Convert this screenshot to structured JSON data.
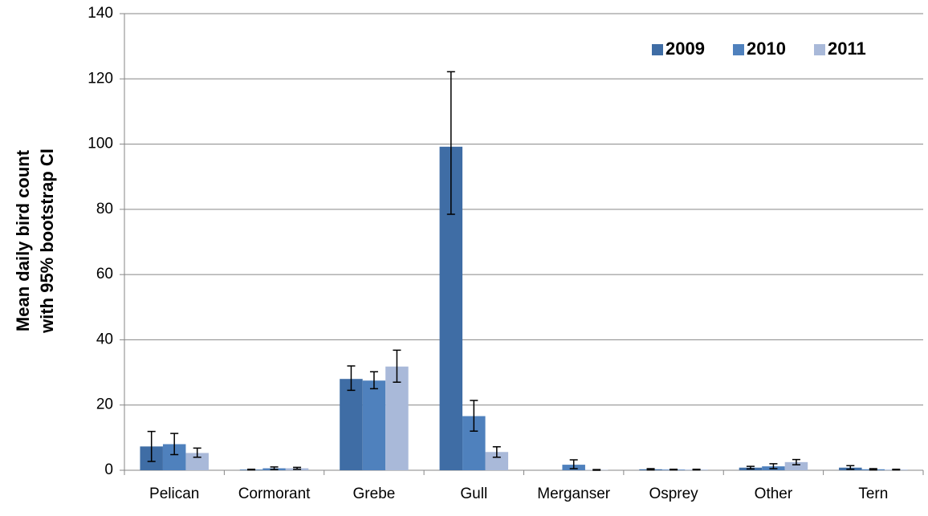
{
  "chart_data": {
    "type": "bar",
    "ylabel": [
      "Mean daily bird count",
      "with 95% bootstrap CI"
    ],
    "categories": [
      "Pelican",
      "Cormorant",
      "Grebe",
      "Gull",
      "Merganser",
      "Osprey",
      "Other",
      "Tern"
    ],
    "series": [
      {
        "name": "2009",
        "color": "#3f6da5",
        "values": [
          7.3,
          0.2,
          28.0,
          99.2,
          null,
          0.3,
          0.8,
          0.8
        ],
        "ci_low": [
          2.7,
          0.1,
          24.5,
          78.5,
          null,
          0.1,
          0.4,
          0.3
        ],
        "ci_high": [
          11.9,
          0.3,
          32.0,
          122.2,
          null,
          0.5,
          1.2,
          1.4
        ]
      },
      {
        "name": "2010",
        "color": "#4f81bd",
        "values": [
          8.0,
          0.6,
          27.5,
          16.6,
          1.7,
          0.2,
          1.2,
          0.3
        ],
        "ci_low": [
          4.8,
          0.2,
          25.0,
          12.0,
          0.5,
          0.1,
          0.5,
          0.1
        ],
        "ci_high": [
          11.3,
          1.0,
          30.2,
          21.4,
          3.2,
          0.3,
          2.0,
          0.5
        ]
      },
      {
        "name": "2011",
        "color": "#a9b9d9",
        "values": [
          5.3,
          0.6,
          31.8,
          5.6,
          0.1,
          0.2,
          2.5,
          0.2
        ],
        "ci_low": [
          4.0,
          0.3,
          27.0,
          4.0,
          0.0,
          0.1,
          1.7,
          0.1
        ],
        "ci_high": [
          6.8,
          0.9,
          36.8,
          7.2,
          0.2,
          0.3,
          3.3,
          0.3
        ]
      }
    ],
    "ylim": [
      0,
      140
    ],
    "yticks": [
      0,
      20,
      40,
      60,
      80,
      100,
      120,
      140
    ],
    "grid": true,
    "legend": "top-right"
  }
}
